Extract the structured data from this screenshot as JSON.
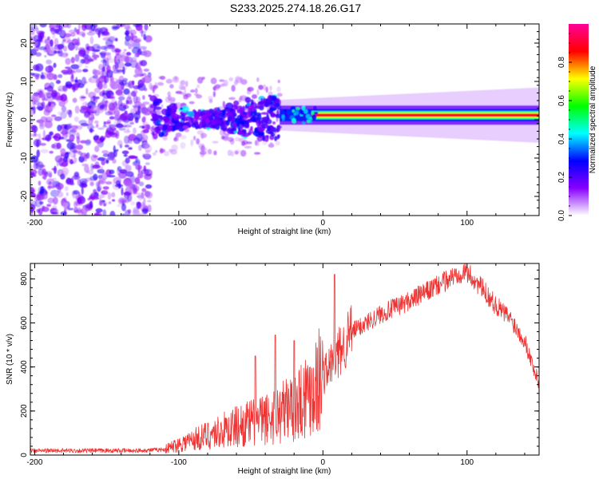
{
  "title": "S233.2025.274.18.26.G17",
  "chart_data": [
    {
      "type": "heatmap",
      "name": "spectrogram",
      "xlabel": "Height of straight line (km)",
      "ylabel": "Frequency (Hz)",
      "xlim": [
        -203,
        150
      ],
      "ylim": [
        -25,
        25
      ],
      "x_ticks": [
        -200,
        -100,
        0,
        100
      ],
      "x_tick_labels": [
        "-200",
        "-100",
        "0",
        "100"
      ],
      "y_ticks": [
        -20,
        -10,
        0,
        10,
        20
      ],
      "y_tick_labels": [
        "-20",
        "-10",
        "0",
        "10",
        "20"
      ],
      "features": {
        "noise_region_km": [
          -203,
          -120
        ],
        "cluster_region_km": [
          -118,
          -30
        ],
        "tone_start_km": -30,
        "tone_frequency_hz": 1.2,
        "tone_peak_amplitude": 0.9
      },
      "colorbar": {
        "label": "Normalized spectral amplitude",
        "range": [
          0,
          1
        ],
        "ticks": [
          0,
          0.2,
          0.4,
          0.6,
          0.8
        ],
        "tick_labels": [
          "0.0",
          "0.2",
          "0.4",
          "0.6",
          "0.8"
        ],
        "colors": [
          "#ffffff",
          "#8800ff",
          "#0000ff",
          "#00ffff",
          "#00ff00",
          "#ffff00",
          "#ff0000",
          "#ff0099"
        ]
      }
    },
    {
      "type": "line",
      "name": "snr",
      "color": "#ee3333",
      "xlabel": "Height of straight line (km)",
      "ylabel": "SNR (10 * v/v)",
      "xlim": [
        -203,
        150
      ],
      "ylim": [
        0,
        870
      ],
      "x_ticks": [
        -200,
        -100,
        0,
        100
      ],
      "x_tick_labels": [
        "-200",
        "-100",
        "0",
        "100"
      ],
      "y_ticks": [
        0,
        200,
        400,
        600,
        800
      ],
      "y_tick_labels": [
        "0",
        "200",
        "400",
        "600",
        "800"
      ],
      "envelope": {
        "x": [
          -203,
          -130,
          -110,
          -100,
          -80,
          -60,
          -40,
          -30,
          -20,
          -10,
          0,
          10,
          20,
          40,
          60,
          80,
          95,
          100,
          110,
          120,
          130,
          140,
          150
        ],
        "y": [
          20,
          20,
          25,
          50,
          90,
          130,
          160,
          190,
          230,
          290,
          360,
          450,
          560,
          640,
          700,
          770,
          830,
          830,
          760,
          680,
          620,
          520,
          320
        ]
      },
      "spikes": [
        {
          "x": -47,
          "y": 450
        },
        {
          "x": -33,
          "y": 545
        },
        {
          "x": -20,
          "y": 520
        },
        {
          "x": 8,
          "y": 820
        }
      ]
    }
  ]
}
